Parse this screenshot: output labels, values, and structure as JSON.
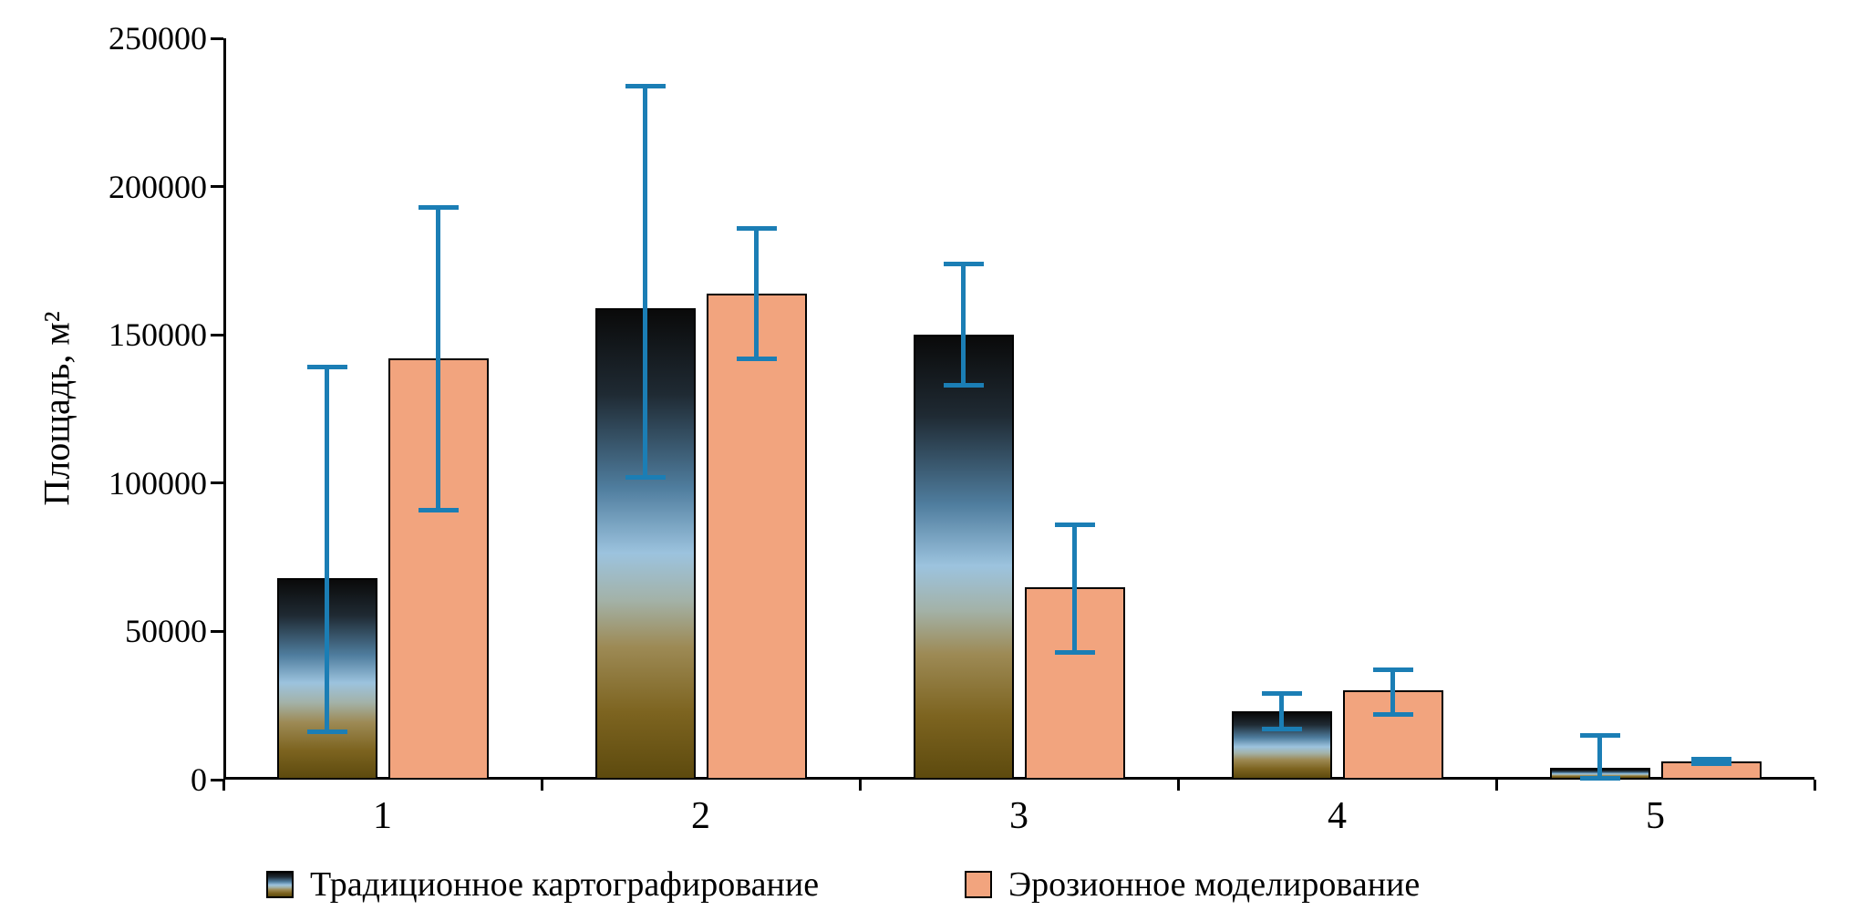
{
  "chart_data": {
    "type": "bar",
    "title": "",
    "xlabel": "",
    "ylabel": "Площадь, м²",
    "categories": [
      "1",
      "2",
      "3",
      "4",
      "5"
    ],
    "ylim": [
      0,
      250000
    ],
    "yticks": [
      0,
      50000,
      100000,
      150000,
      200000,
      250000
    ],
    "grid": false,
    "legend_position": "bottom",
    "series": [
      {
        "name": "Традиционное картографирование",
        "values": [
          68000,
          159000,
          150000,
          23000,
          4000
        ],
        "error_low": [
          16000,
          102000,
          133000,
          17000,
          500
        ],
        "error_high": [
          139000,
          234000,
          174000,
          29000,
          15000
        ]
      },
      {
        "name": "Эрозионное моделирование",
        "values": [
          142000,
          164000,
          65000,
          30000,
          6000
        ],
        "error_low": [
          91000,
          142000,
          43000,
          22000,
          5500
        ],
        "error_high": [
          193000,
          186000,
          86000,
          37000,
          7000
        ]
      }
    ],
    "colors": {
      "series1_gradient": [
        "#0a0a0a 0%",
        "#1f2a33 18%",
        "#4f7d9e 38%",
        "#9cc3de 52%",
        "#a3b2a8 62%",
        "#9d8a55 72%",
        "#7d6420 86%",
        "#5d4a0e 100%"
      ],
      "series2": "#f2a47e",
      "error_bar": "#1b7eb5",
      "axis": "#000000"
    }
  }
}
